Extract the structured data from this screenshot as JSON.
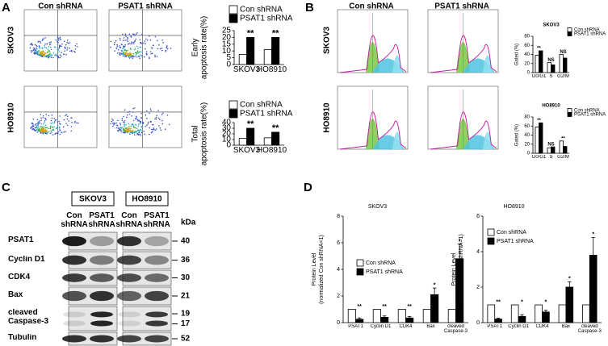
{
  "panel_labels": [
    "A",
    "B",
    "C",
    "D"
  ],
  "column_labels": [
    "Con shRNA",
    "PSAT1 shRNA"
  ],
  "row_labels": [
    "SKOV3",
    "HO8910"
  ],
  "blot": {
    "cell_lines": [
      "SKOV3",
      "HO8910"
    ],
    "lanes": [
      "Con shRNA",
      "PSAT1 shRNA"
    ],
    "kda_label": "kDa",
    "proteins": [
      {
        "name": "PSAT1",
        "kda": [
          40
        ]
      },
      {
        "name": "Cyclin D1",
        "kda": [
          36
        ]
      },
      {
        "name": "CDK4",
        "kda": [
          30
        ]
      },
      {
        "name": "Bax",
        "kda": [
          21
        ]
      },
      {
        "name": "cleaved Caspase-3",
        "kda": [
          19,
          17
        ]
      },
      {
        "name": "Tubulin",
        "kda": [
          52
        ]
      }
    ]
  },
  "chart_data": [
    {
      "type": "bar",
      "ylabel": [
        "Early",
        "apoptosis rate(%)"
      ],
      "categories": [
        "SKOV3",
        "HO8910"
      ],
      "series": [
        {
          "name": "Con shRNA",
          "color": "#ffffff",
          "values": [
            7.5,
            11
          ]
        },
        {
          "name": "PSAT1 shRNA",
          "color": "#000000",
          "values": [
            20,
            20
          ]
        }
      ],
      "ylim": [
        0,
        25
      ],
      "yticks": [
        0,
        5,
        10,
        15,
        20,
        25
      ],
      "annotations": [
        "**",
        "**"
      ],
      "legend": "top"
    },
    {
      "type": "bar",
      "ylabel": [
        "Total",
        "apoptosis rate(%)"
      ],
      "categories": [
        "SKOV3",
        "HO8910"
      ],
      "series": [
        {
          "name": "Con shRNA",
          "color": "#ffffff",
          "values": [
            12,
            13
          ]
        },
        {
          "name": "PSAT1 shRNA",
          "color": "#000000",
          "values": [
            30,
            23
          ]
        }
      ],
      "ylim": [
        0,
        40
      ],
      "yticks": [
        0,
        10,
        20,
        30,
        40
      ],
      "annotations": [
        "**",
        "**"
      ],
      "legend": "top"
    },
    {
      "type": "bar",
      "title": "SKOV3",
      "ylabel": [
        "Gated (%)"
      ],
      "categories": [
        "G0/G1",
        "S",
        "G2/M"
      ],
      "series": [
        {
          "name": "Con shRNA",
          "color": "#ffffff",
          "values": [
            38,
            22,
            40
          ]
        },
        {
          "name": "PSAT1 shRNA",
          "color": "#000000",
          "values": [
            48,
            17,
            32
          ]
        }
      ],
      "ylim": [
        0,
        80
      ],
      "yticks": [
        0,
        20,
        40,
        60,
        80
      ],
      "annotations": [
        "**",
        "NS",
        "NS"
      ],
      "legend": "upper right"
    },
    {
      "type": "bar",
      "title": "HO8910",
      "ylabel": [
        "Gated (%)"
      ],
      "categories": [
        "G0/G1",
        "S",
        "G2/M"
      ],
      "series": [
        {
          "name": "Con shRNA",
          "color": "#ffffff",
          "values": [
            58,
            12,
            27
          ]
        },
        {
          "name": "PSAT1 shRNA",
          "color": "#000000",
          "values": [
            67,
            14,
            15
          ]
        }
      ],
      "ylim": [
        0,
        80
      ],
      "yticks": [
        0,
        20,
        40,
        60,
        80
      ],
      "annotations": [
        "**",
        "NS",
        "**"
      ],
      "legend": "upper right"
    },
    {
      "type": "bar",
      "title": "SKOV3",
      "ylabel": [
        "Protein Level",
        "(normalized Con shRNA=1)"
      ],
      "categories": [
        "PSAT1",
        "Cyclin D1",
        "CDK4",
        "Bax",
        "cleaved Caspase-3"
      ],
      "series": [
        {
          "name": "Con shRNA",
          "color": "#ffffff",
          "values": [
            1,
            1,
            1,
            1,
            1
          ]
        },
        {
          "name": "PSAT1 shRNA",
          "color": "#000000",
          "values": [
            0.25,
            0.4,
            0.35,
            2.1,
            4.8
          ],
          "errors": [
            0.1,
            0.1,
            0.1,
            0.5,
            1.1
          ]
        }
      ],
      "ylim": [
        0,
        8
      ],
      "yticks": [
        0,
        2,
        4,
        6,
        8
      ],
      "annotations": [
        "**",
        "**",
        "**",
        "*",
        "*"
      ],
      "legend": "upper left"
    },
    {
      "type": "bar",
      "title": "HO8910",
      "ylabel": [
        "Protein Level",
        "(normalized, Con shRNA=1)"
      ],
      "categories": [
        "PSAT1",
        "Cyclin D1",
        "CDK4",
        "Bax",
        "cleaved Caspase-3"
      ],
      "series": [
        {
          "name": "Con shRNA",
          "color": "#ffffff",
          "values": [
            1,
            1,
            1,
            1,
            1
          ]
        },
        {
          "name": "PSAT1 shRNA",
          "color": "#000000",
          "values": [
            0.2,
            0.35,
            0.6,
            2.0,
            3.8
          ],
          "errors": [
            0.05,
            0.1,
            0.1,
            0.3,
            1.0
          ]
        }
      ],
      "ylim": [
        0,
        6
      ],
      "yticks": [
        0,
        2,
        4,
        6
      ],
      "annotations": [
        "**",
        "*",
        "*",
        "*",
        "*"
      ],
      "legend": "upper left"
    }
  ]
}
